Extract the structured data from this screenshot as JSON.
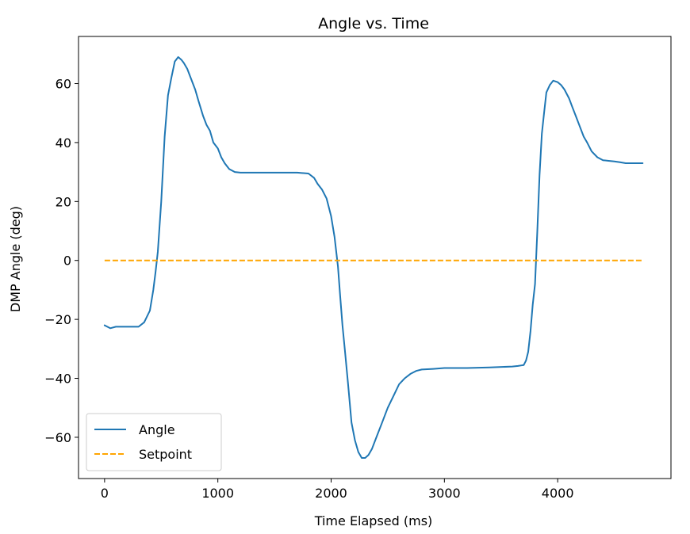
{
  "chart_data": {
    "type": "line",
    "title": "Angle vs. Time",
    "xlabel": "Time Elapsed (ms)",
    "ylabel": "DMP Angle (deg)",
    "xlim": [
      -230,
      5000
    ],
    "ylim": [
      -74,
      76
    ],
    "xticks": [
      0,
      1000,
      2000,
      3000,
      4000
    ],
    "xtick_labels": [
      "0",
      "1000",
      "2000",
      "3000",
      "4000"
    ],
    "yticks": [
      -60,
      -40,
      -20,
      0,
      20,
      40,
      60
    ],
    "ytick_labels": [
      "−60",
      "−40",
      "−20",
      "0",
      "20",
      "40",
      "60"
    ],
    "grid": false,
    "legend": "lower-left",
    "series": [
      {
        "name": "Angle",
        "color": "#1f77b4",
        "style": "solid",
        "x": [
          0,
          50,
          100,
          300,
          350,
          400,
          430,
          450,
          470,
          500,
          530,
          560,
          590,
          620,
          650,
          680,
          700,
          730,
          760,
          800,
          830,
          870,
          900,
          930,
          960,
          1000,
          1030,
          1060,
          1100,
          1150,
          1200,
          1250,
          1300,
          1500,
          1700,
          1800,
          1850,
          1880,
          1920,
          1960,
          2000,
          2030,
          2060,
          2080,
          2100,
          2120,
          2150,
          2180,
          2210,
          2240,
          2270,
          2300,
          2330,
          2360,
          2400,
          2450,
          2500,
          2550,
          2600,
          2650,
          2700,
          2750,
          2800,
          2900,
          3000,
          3200,
          3400,
          3600,
          3650,
          3680,
          3700,
          3720,
          3740,
          3760,
          3780,
          3800,
          3820,
          3840,
          3860,
          3880,
          3900,
          3930,
          3960,
          4000,
          4030,
          4060,
          4100,
          4130,
          4160,
          4200,
          4230,
          4260,
          4300,
          4350,
          4400,
          4450,
          4500,
          4550,
          4600,
          4700,
          4750
        ],
        "y": [
          -22,
          -23,
          -22.5,
          -22.5,
          -21,
          -17,
          -10,
          -4,
          3,
          20,
          42,
          56,
          62,
          67.5,
          69,
          68,
          67,
          65,
          62,
          58,
          54,
          49,
          46,
          44,
          40,
          38,
          35,
          33,
          31,
          30,
          29.8,
          29.8,
          29.8,
          29.8,
          29.8,
          29.5,
          28,
          26,
          24,
          21,
          15,
          8,
          -2,
          -12,
          -22,
          -30,
          -42,
          -55,
          -61,
          -65,
          -67,
          -67,
          -66,
          -64,
          -60,
          -55,
          -50,
          -46,
          -42,
          -40,
          -38.5,
          -37.5,
          -37,
          -36.8,
          -36.5,
          -36.5,
          -36.3,
          -36,
          -35.8,
          -35.6,
          -35.5,
          -34,
          -31,
          -24,
          -15,
          -8,
          10,
          29,
          43,
          50,
          57,
          59.5,
          61,
          60.5,
          59.5,
          58,
          55,
          52,
          49,
          45,
          42,
          40,
          37,
          35,
          34,
          33.8,
          33.6,
          33.3,
          33,
          33,
          33
        ]
      },
      {
        "name": "Setpoint",
        "color": "#ffa500",
        "style": "dashed",
        "x": [
          0,
          4750
        ],
        "y": [
          0,
          0
        ]
      }
    ]
  }
}
